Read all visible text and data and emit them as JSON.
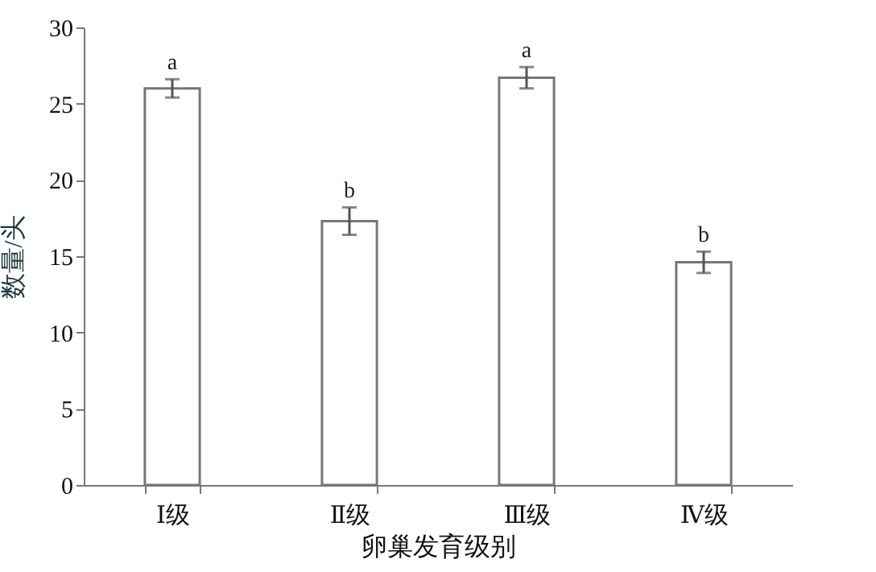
{
  "chart_data": {
    "type": "bar",
    "xlabel": "卵巢发育级别",
    "ylabel": "数量/头",
    "categories": [
      "Ⅰ级",
      "Ⅱ级",
      "Ⅲ级",
      "Ⅳ级"
    ],
    "values": [
      26.0,
      17.3,
      26.7,
      14.6
    ],
    "errors": [
      0.6,
      0.9,
      0.7,
      0.7
    ],
    "color": "#ffffff",
    "ylim": [
      0,
      30
    ],
    "yticks": [
      0,
      5,
      10,
      15,
      20,
      25,
      30
    ],
    "annotations": [
      {
        "text": "a",
        "x": "Ⅰ级",
        "y": 26.6
      },
      {
        "text": "b",
        "x": "Ⅱ级",
        "y": 18.2
      },
      {
        "text": "a",
        "x": "Ⅲ级",
        "y": 27.4
      },
      {
        "text": "b",
        "x": "Ⅳ级",
        "y": 15.3
      }
    ]
  }
}
